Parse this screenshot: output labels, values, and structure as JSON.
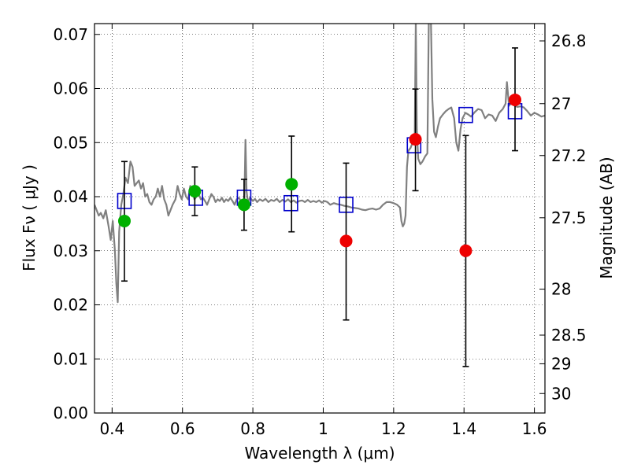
{
  "chart_data": {
    "type": "scatter",
    "xlabel": "Wavelength  λ (μm)",
    "ylabel": "Flux  Fν  ( μJy )",
    "y2label": "Magnitude (AB)",
    "xlim": [
      0.35,
      1.63
    ],
    "ylim": [
      0.0,
      0.072
    ],
    "x_ticks": [
      "0.4",
      "0.6",
      "0.8",
      "1",
      "1.2",
      "1.4",
      "1.6"
    ],
    "x_tick_values": [
      0.4,
      0.6,
      0.8,
      1.0,
      1.2,
      1.4,
      1.6
    ],
    "y_ticks": [
      "0.00",
      "0.01",
      "0.02",
      "0.03",
      "0.04",
      "0.05",
      "0.06",
      "0.07"
    ],
    "y_tick_values": [
      0.0,
      0.01,
      0.02,
      0.03,
      0.04,
      0.05,
      0.06,
      0.07
    ],
    "y2_ticks": [
      {
        "label": "26.8",
        "flux": 0.0688
      },
      {
        "label": "27",
        "flux": 0.0572
      },
      {
        "label": "27.2",
        "flux": 0.0476
      },
      {
        "label": "27.5",
        "flux": 0.0361
      },
      {
        "label": "28",
        "flux": 0.0229
      },
      {
        "label": "28.5",
        "flux": 0.0144
      },
      {
        "label": "29",
        "flux": 0.0091
      },
      {
        "label": "30",
        "flux": 0.0036
      }
    ],
    "grid": true,
    "colors": {
      "spectrum": "#808080",
      "model": "#0000cc",
      "green": "#00b000",
      "red": "#ee0000",
      "errorbar": "#000000"
    },
    "series": [
      {
        "kind": "spectrum",
        "points": [
          [
            0.35,
            0.0385
          ],
          [
            0.356,
            0.0375
          ],
          [
            0.362,
            0.0365
          ],
          [
            0.368,
            0.037
          ],
          [
            0.375,
            0.036
          ],
          [
            0.382,
            0.0375
          ],
          [
            0.39,
            0.0345
          ],
          [
            0.396,
            0.032
          ],
          [
            0.402,
            0.0355
          ],
          [
            0.408,
            0.03
          ],
          [
            0.412,
            0.024
          ],
          [
            0.416,
            0.0205
          ],
          [
            0.42,
            0.0335
          ],
          [
            0.426,
            0.0385
          ],
          [
            0.432,
            0.0405
          ],
          [
            0.438,
            0.0435
          ],
          [
            0.445,
            0.0425
          ],
          [
            0.452,
            0.0465
          ],
          [
            0.458,
            0.0455
          ],
          [
            0.464,
            0.042
          ],
          [
            0.47,
            0.0425
          ],
          [
            0.476,
            0.043
          ],
          [
            0.482,
            0.0415
          ],
          [
            0.488,
            0.0425
          ],
          [
            0.494,
            0.04
          ],
          [
            0.5,
            0.0405
          ],
          [
            0.506,
            0.039
          ],
          [
            0.512,
            0.0385
          ],
          [
            0.518,
            0.0395
          ],
          [
            0.524,
            0.04
          ],
          [
            0.53,
            0.0415
          ],
          [
            0.536,
            0.04
          ],
          [
            0.542,
            0.042
          ],
          [
            0.548,
            0.0395
          ],
          [
            0.554,
            0.0385
          ],
          [
            0.56,
            0.0365
          ],
          [
            0.566,
            0.0375
          ],
          [
            0.572,
            0.0385
          ],
          [
            0.58,
            0.0395
          ],
          [
            0.586,
            0.042
          ],
          [
            0.592,
            0.0405
          ],
          [
            0.598,
            0.0395
          ],
          [
            0.604,
            0.0415
          ],
          [
            0.61,
            0.04
          ],
          [
            0.616,
            0.0395
          ],
          [
            0.622,
            0.042
          ],
          [
            0.628,
            0.041
          ],
          [
            0.634,
            0.0395
          ],
          [
            0.64,
            0.04
          ],
          [
            0.646,
            0.0405
          ],
          [
            0.652,
            0.0395
          ],
          [
            0.658,
            0.0398
          ],
          [
            0.664,
            0.0392
          ],
          [
            0.67,
            0.0385
          ],
          [
            0.676,
            0.0395
          ],
          [
            0.682,
            0.0405
          ],
          [
            0.688,
            0.04
          ],
          [
            0.694,
            0.039
          ],
          [
            0.7,
            0.0395
          ],
          [
            0.706,
            0.0392
          ],
          [
            0.712,
            0.0398
          ],
          [
            0.718,
            0.039
          ],
          [
            0.724,
            0.0395
          ],
          [
            0.73,
            0.0392
          ],
          [
            0.736,
            0.0398
          ],
          [
            0.742,
            0.0392
          ],
          [
            0.748,
            0.0385
          ],
          [
            0.754,
            0.0395
          ],
          [
            0.76,
            0.0398
          ],
          [
            0.766,
            0.0392
          ],
          [
            0.772,
            0.0388
          ],
          [
            0.776,
            0.0396
          ],
          [
            0.779,
            0.0505
          ],
          [
            0.782,
            0.041
          ],
          [
            0.786,
            0.039
          ],
          [
            0.792,
            0.0398
          ],
          [
            0.8,
            0.0392
          ],
          [
            0.806,
            0.0396
          ],
          [
            0.812,
            0.039
          ],
          [
            0.82,
            0.0395
          ],
          [
            0.828,
            0.0392
          ],
          [
            0.836,
            0.0396
          ],
          [
            0.844,
            0.039
          ],
          [
            0.852,
            0.0394
          ],
          [
            0.86,
            0.0392
          ],
          [
            0.868,
            0.0396
          ],
          [
            0.876,
            0.039
          ],
          [
            0.884,
            0.0394
          ],
          [
            0.892,
            0.0391
          ],
          [
            0.9,
            0.0395
          ],
          [
            0.908,
            0.039
          ],
          [
            0.916,
            0.0393
          ],
          [
            0.924,
            0.0389
          ],
          [
            0.932,
            0.0392
          ],
          [
            0.94,
            0.0393
          ],
          [
            0.948,
            0.039
          ],
          [
            0.956,
            0.0394
          ],
          [
            0.964,
            0.039
          ],
          [
            0.972,
            0.0392
          ],
          [
            0.98,
            0.039
          ],
          [
            0.988,
            0.0393
          ],
          [
            0.996,
            0.0389
          ],
          [
            1.004,
            0.0392
          ],
          [
            1.012,
            0.039
          ],
          [
            1.02,
            0.0385
          ],
          [
            1.03,
            0.0388
          ],
          [
            1.04,
            0.0386
          ],
          [
            1.05,
            0.0385
          ],
          [
            1.06,
            0.0383
          ],
          [
            1.07,
            0.0382
          ],
          [
            1.08,
            0.038
          ],
          [
            1.09,
            0.0379
          ],
          [
            1.1,
            0.0378
          ],
          [
            1.11,
            0.0376
          ],
          [
            1.12,
            0.0375
          ],
          [
            1.13,
            0.0377
          ],
          [
            1.14,
            0.0378
          ],
          [
            1.15,
            0.0376
          ],
          [
            1.16,
            0.0378
          ],
          [
            1.17,
            0.0385
          ],
          [
            1.18,
            0.039
          ],
          [
            1.19,
            0.039
          ],
          [
            1.2,
            0.0388
          ],
          [
            1.21,
            0.0385
          ],
          [
            1.218,
            0.038
          ],
          [
            1.222,
            0.0355
          ],
          [
            1.226,
            0.0345
          ],
          [
            1.23,
            0.035
          ],
          [
            1.234,
            0.0365
          ],
          [
            1.238,
            0.0455
          ],
          [
            1.242,
            0.0485
          ],
          [
            1.248,
            0.049
          ],
          [
            1.254,
            0.05
          ],
          [
            1.26,
            0.0515
          ],
          [
            1.263,
            0.0725
          ],
          [
            1.266,
            0.0525
          ],
          [
            1.27,
            0.047
          ],
          [
            1.276,
            0.046
          ],
          [
            1.282,
            0.0465
          ],
          [
            1.29,
            0.0475
          ],
          [
            1.296,
            0.048
          ],
          [
            1.3,
            0.0725
          ],
          [
            1.306,
            0.0725
          ],
          [
            1.31,
            0.058
          ],
          [
            1.315,
            0.052
          ],
          [
            1.32,
            0.051
          ],
          [
            1.326,
            0.053
          ],
          [
            1.332,
            0.0545
          ],
          [
            1.34,
            0.0552
          ],
          [
            1.348,
            0.0558
          ],
          [
            1.356,
            0.0562
          ],
          [
            1.364,
            0.0565
          ],
          [
            1.372,
            0.0545
          ],
          [
            1.378,
            0.05
          ],
          [
            1.384,
            0.0485
          ],
          [
            1.39,
            0.0525
          ],
          [
            1.396,
            0.0545
          ],
          [
            1.404,
            0.0555
          ],
          [
            1.412,
            0.0552
          ],
          [
            1.42,
            0.0548
          ],
          [
            1.43,
            0.0556
          ],
          [
            1.44,
            0.0562
          ],
          [
            1.45,
            0.056
          ],
          [
            1.46,
            0.0545
          ],
          [
            1.47,
            0.0552
          ],
          [
            1.48,
            0.055
          ],
          [
            1.49,
            0.054
          ],
          [
            1.5,
            0.0555
          ],
          [
            1.51,
            0.0562
          ],
          [
            1.518,
            0.0572
          ],
          [
            1.522,
            0.0612
          ],
          [
            1.528,
            0.0568
          ],
          [
            1.536,
            0.0575
          ],
          [
            1.544,
            0.0568
          ],
          [
            1.552,
            0.0566
          ],
          [
            1.56,
            0.0567
          ],
          [
            1.57,
            0.0565
          ],
          [
            1.58,
            0.0558
          ],
          [
            1.59,
            0.055
          ],
          [
            1.6,
            0.0555
          ],
          [
            1.61,
            0.0552
          ],
          [
            1.62,
            0.0548
          ],
          [
            1.63,
            0.055
          ]
        ]
      },
      {
        "kind": "model",
        "points": [
          [
            0.435,
            0.0392
          ],
          [
            0.638,
            0.0398
          ],
          [
            0.775,
            0.0398
          ],
          [
            0.908,
            0.0388
          ],
          [
            1.065,
            0.0385
          ],
          [
            1.258,
            0.0495
          ],
          [
            1.405,
            0.0551
          ],
          [
            1.545,
            0.0558
          ]
        ]
      },
      {
        "kind": "green",
        "points": [
          {
            "x": 0.435,
            "y": 0.0355,
            "err": [
              0.0244,
              0.0465
            ]
          },
          {
            "x": 0.635,
            "y": 0.041,
            "err": [
              0.0365,
              0.0455
            ]
          },
          {
            "x": 0.775,
            "y": 0.0385,
            "err": [
              0.0338,
              0.0432
            ]
          },
          {
            "x": 0.91,
            "y": 0.0423,
            "err": [
              0.0335,
              0.0512
            ]
          }
        ]
      },
      {
        "kind": "red",
        "points": [
          {
            "x": 1.065,
            "y": 0.0318,
            "err": [
              0.0172,
              0.0462
            ]
          },
          {
            "x": 1.262,
            "y": 0.0506,
            "err": [
              0.0411,
              0.0599
            ]
          },
          {
            "x": 1.405,
            "y": 0.03,
            "err": [
              0.0086,
              0.0513
            ]
          },
          {
            "x": 1.545,
            "y": 0.0579,
            "err": [
              0.0485,
              0.0675
            ]
          }
        ]
      }
    ]
  }
}
